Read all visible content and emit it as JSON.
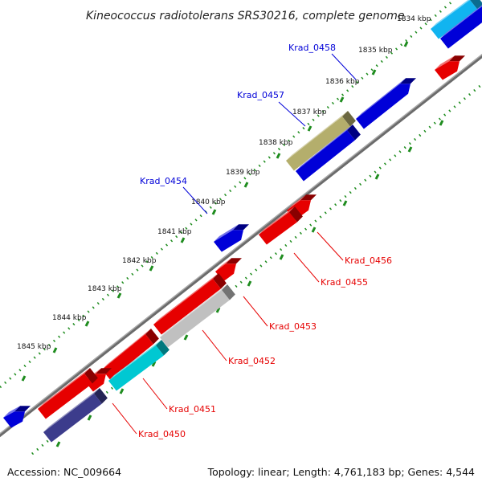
{
  "title": "Kineococcus radiotolerans SRS30216, complete genome",
  "colors": {
    "forward": "#e60000",
    "reverse": "#0000d8",
    "cyan": "#00c8d2",
    "light_blue": "#11b4f0",
    "gray": "#c0c0c0",
    "olive": "#b4ae6c",
    "navy": "#3c3c8c",
    "tick": "#1e8c1e",
    "backbone": "#808080"
  },
  "kbp_ticks": [
    "1834 kbp",
    "1835 kbp",
    "1836 kbp",
    "1837 kbp",
    "1838 kbp",
    "1839 kbp",
    "1840 kbp",
    "1841 kbp",
    "1842 kbp",
    "1843 kbp",
    "1844 kbp",
    "1845 kbp"
  ],
  "genes": [
    {
      "id": "Krad_0458",
      "strand": "reverse",
      "color": "reverse"
    },
    {
      "id": "Krad_0457",
      "strand": "reverse",
      "color": "olive"
    },
    {
      "id": "Krad_0454",
      "strand": "reverse",
      "color": "reverse"
    },
    {
      "id": "Krad_0456",
      "strand": "forward",
      "color": "forward"
    },
    {
      "id": "Krad_0455",
      "strand": "forward",
      "color": "forward"
    },
    {
      "id": "Krad_0453",
      "strand": "forward",
      "color": "gray"
    },
    {
      "id": "Krad_0452",
      "strand": "forward",
      "color": "gray"
    },
    {
      "id": "Krad_0451",
      "strand": "forward",
      "color": "cyan"
    },
    {
      "id": "Krad_0450",
      "strand": "forward",
      "color": "navy"
    }
  ],
  "footer": {
    "accession": "Accession: NC_009664",
    "summary": "Topology: linear; Length: 4,761,183 bp; Genes: 4,544"
  }
}
